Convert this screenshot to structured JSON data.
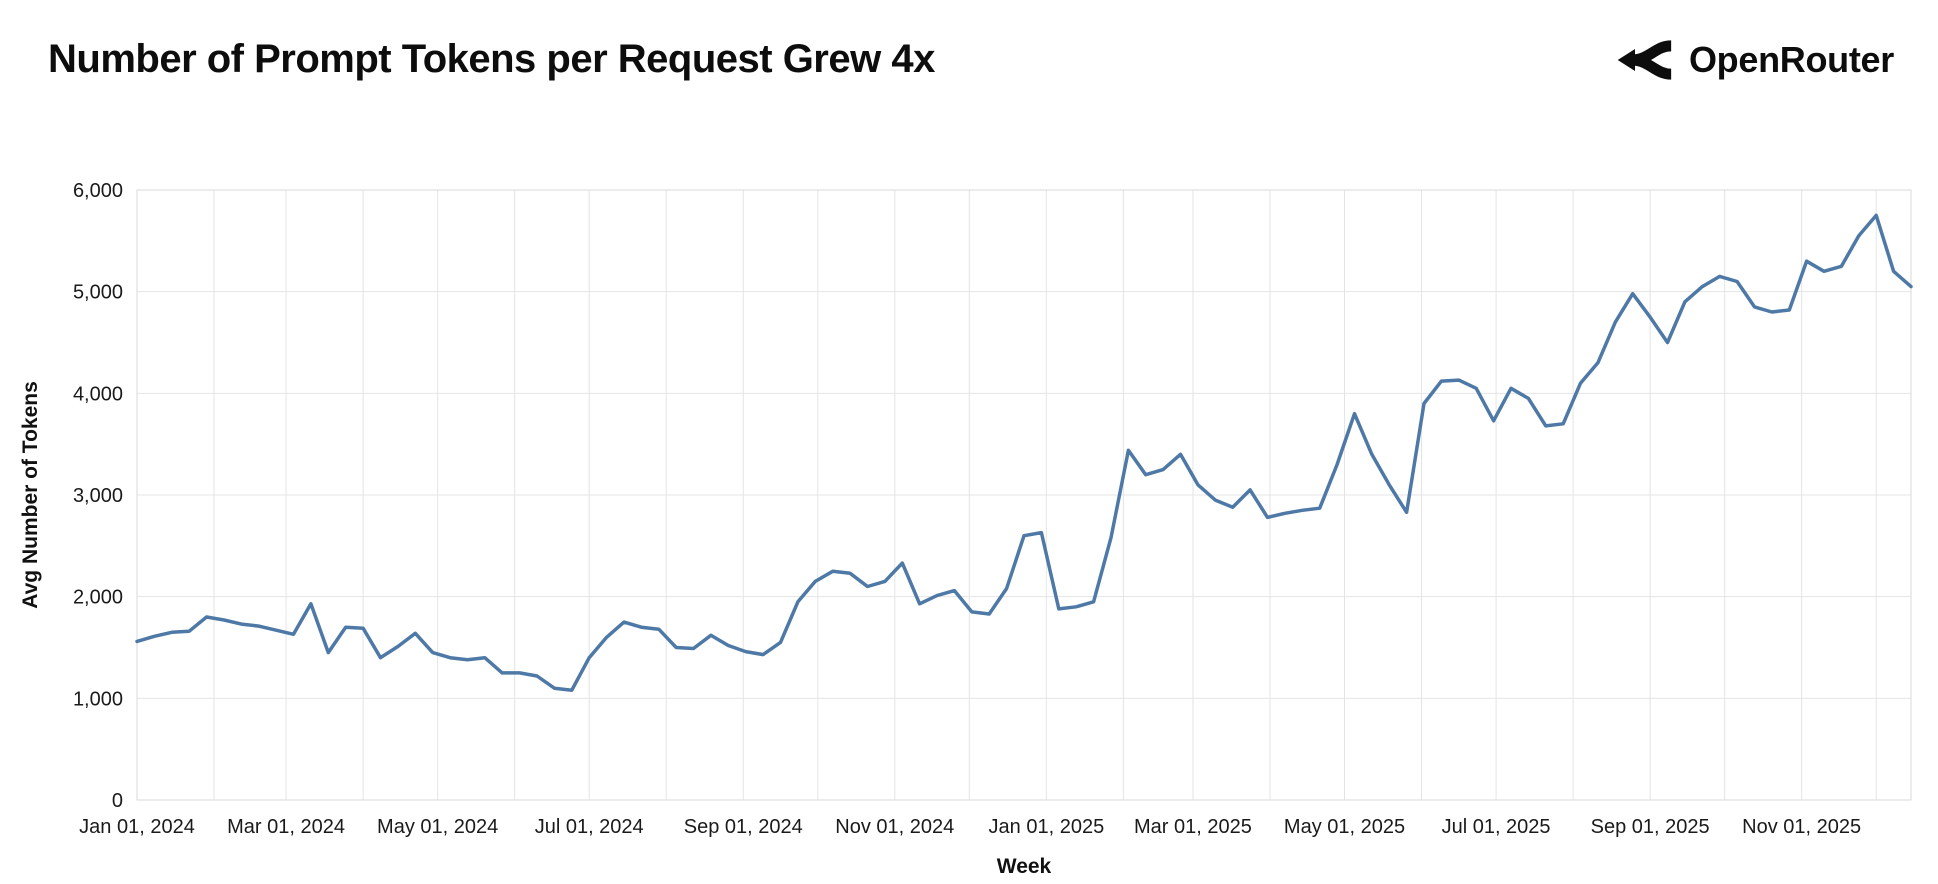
{
  "header": {
    "title": "Number of Prompt Tokens per Request Grew 4x",
    "brand": "OpenRouter"
  },
  "chart_data": {
    "type": "line",
    "title": "Number of Prompt Tokens per Request Grew 4x",
    "xlabel": "Week",
    "ylabel": "Avg Number of Tokens",
    "ylim": [
      0,
      6000
    ],
    "ytick_values": [
      0,
      1000,
      2000,
      3000,
      4000,
      5000,
      6000
    ],
    "ytick_labels": [
      "0",
      "1,000",
      "2,000",
      "3,000",
      "4,000",
      "5,000",
      "6,000"
    ],
    "xticks": [
      {
        "label": "Jan 01, 2024",
        "date": "2024-01-01"
      },
      {
        "label": "Mar 01, 2024",
        "date": "2024-03-01"
      },
      {
        "label": "May 01, 2024",
        "date": "2024-05-01"
      },
      {
        "label": "Jul 01, 2024",
        "date": "2024-07-01"
      },
      {
        "label": "Sep 01, 2024",
        "date": "2024-09-01"
      },
      {
        "label": "Nov 01, 2024",
        "date": "2024-11-01"
      },
      {
        "label": "Jan 01, 2025",
        "date": "2025-01-01"
      },
      {
        "label": "Mar 01, 2025",
        "date": "2025-03-01"
      },
      {
        "label": "May 01, 2025",
        "date": "2025-05-01"
      },
      {
        "label": "Jul 01, 2025",
        "date": "2025-07-01"
      },
      {
        "label": "Sep 01, 2025",
        "date": "2025-09-01"
      },
      {
        "label": "Nov 01, 2025",
        "date": "2025-11-01"
      }
    ],
    "x_start": "2024-01-01",
    "x_interval_days": 7,
    "grid": {
      "color": "#e4e4e4",
      "vertical": "monthly",
      "horizontal": "every 1000"
    },
    "legend": "none",
    "series": [
      {
        "name": "Avg Number of Tokens",
        "color": "#4e79a7",
        "values": [
          1560,
          1610,
          1650,
          1660,
          1800,
          1770,
          1730,
          1710,
          1670,
          1630,
          1930,
          1450,
          1700,
          1690,
          1400,
          1510,
          1640,
          1450,
          1400,
          1380,
          1400,
          1250,
          1250,
          1220,
          1100,
          1080,
          1400,
          1600,
          1750,
          1700,
          1680,
          1500,
          1490,
          1620,
          1520,
          1460,
          1430,
          1550,
          1950,
          2150,
          2250,
          2230,
          2100,
          2150,
          2330,
          1930,
          2010,
          2060,
          1850,
          1830,
          2080,
          2600,
          2630,
          1880,
          1900,
          1950,
          2580,
          3440,
          3200,
          3250,
          3400,
          3100,
          2950,
          2880,
          3050,
          2780,
          2820,
          2850,
          2870,
          3300,
          3800,
          3400,
          3100,
          2830,
          3900,
          4120,
          4130,
          4050,
          3730,
          4050,
          3950,
          3680,
          3700,
          4100,
          4300,
          4700,
          4980,
          4750,
          4500,
          4900,
          5050,
          5150,
          5100,
          4850,
          4800,
          4820,
          5300,
          5200,
          5250,
          5550,
          5750,
          5200,
          5050
        ]
      }
    ]
  }
}
